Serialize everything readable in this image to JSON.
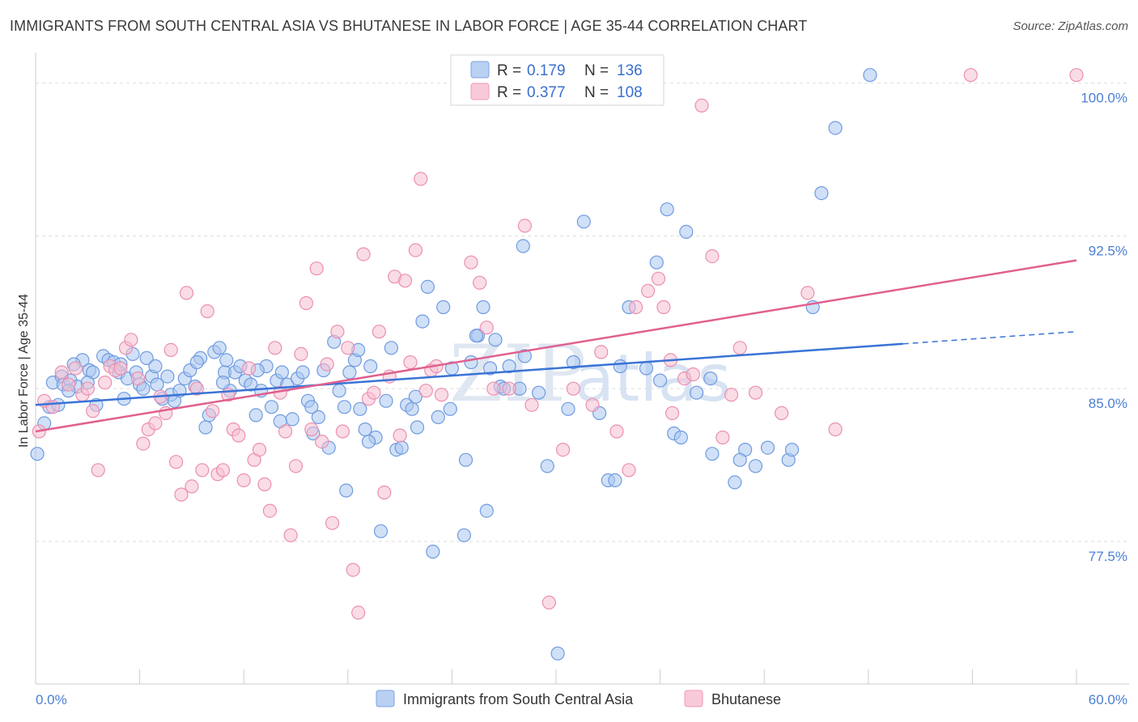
{
  "header": {
    "title": "IMMIGRANTS FROM SOUTH CENTRAL ASIA VS BHUTANESE IN LABOR FORCE | AGE 35-44 CORRELATION CHART",
    "source": "Source: ZipAtlas.com"
  },
  "watermark": {
    "zip": "ZIP",
    "atlas": "atlas"
  },
  "legend": {
    "r_label": "R =",
    "n_label": "N =",
    "rows": [
      {
        "r": "0.179",
        "n": "136",
        "color": "#8fb3ea"
      },
      {
        "r": "0.377",
        "n": "108",
        "color": "#f2a6c0"
      }
    ]
  },
  "colors": {
    "blue_fill": "#a9c6f0",
    "blue_stroke": "#6f9be0",
    "blue_line": "#3a73d6",
    "pink_fill": "#f6bfd2",
    "pink_stroke": "#eb8fb0",
    "pink_line": "#e0608f",
    "grid": "#dddddd",
    "tick_text": "#4a7fd4"
  },
  "chart_data": {
    "type": "scatter",
    "title": "IMMIGRANTS FROM SOUTH CENTRAL ASIA VS BHUTANESE IN LABOR FORCE | AGE 35-44 CORRELATION CHART",
    "xlabel": "",
    "ylabel": "In Labor Force | Age 35-44",
    "xlim": [
      0,
      60
    ],
    "ylim": [
      70.5,
      101.5
    ],
    "x_tick_labels": [
      "0.0%",
      "60.0%"
    ],
    "y_ticks": [
      77.5,
      85.0,
      92.5,
      100.0
    ],
    "y_tick_labels": [
      "77.5%",
      "85.0%",
      "92.5%",
      "100.0%"
    ],
    "grid": true,
    "legend_position": "top-center",
    "series": [
      {
        "name": "Immigrants from South Central Asia",
        "r": 0.179,
        "n": 136,
        "trend": {
          "x0": 0.0,
          "y0": 84.2,
          "x1": 50.0,
          "y1": 87.2,
          "dashed_to_x": 60.0,
          "dashed_to_y": 87.8
        },
        "points": [
          [
            0.1,
            81.8
          ],
          [
            0.5,
            83.3
          ],
          [
            0.8,
            84.1
          ],
          [
            1.0,
            85.3
          ],
          [
            1.5,
            85.6
          ],
          [
            1.6,
            85.2
          ],
          [
            2.0,
            85.4
          ],
          [
            2.4,
            85.1
          ],
          [
            2.7,
            86.4
          ],
          [
            3.1,
            85.9
          ],
          [
            3.3,
            85.8
          ],
          [
            3.5,
            84.2
          ],
          [
            3.9,
            86.6
          ],
          [
            4.2,
            86.4
          ],
          [
            4.5,
            86.3
          ],
          [
            4.8,
            85.8
          ],
          [
            5.1,
            84.5
          ],
          [
            5.3,
            85.5
          ],
          [
            5.6,
            86.7
          ],
          [
            5.8,
            85.8
          ],
          [
            6.0,
            85.2
          ],
          [
            6.4,
            86.5
          ],
          [
            6.7,
            85.6
          ],
          [
            6.9,
            86.1
          ],
          [
            7.3,
            84.5
          ],
          [
            7.6,
            85.6
          ],
          [
            7.8,
            84.7
          ],
          [
            8.0,
            84.4
          ],
          [
            8.3,
            84.9
          ],
          [
            8.6,
            85.5
          ],
          [
            8.9,
            85.9
          ],
          [
            9.2,
            85.1
          ],
          [
            9.5,
            86.5
          ],
          [
            9.8,
            83.1
          ],
          [
            10.0,
            83.7
          ],
          [
            10.3,
            86.8
          ],
          [
            10.6,
            87.0
          ],
          [
            10.9,
            85.8
          ],
          [
            11.2,
            84.9
          ],
          [
            11.5,
            85.8
          ],
          [
            11.8,
            86.1
          ],
          [
            12.1,
            85.4
          ],
          [
            12.4,
            85.2
          ],
          [
            12.7,
            83.7
          ],
          [
            13.0,
            84.9
          ],
          [
            13.3,
            86.1
          ],
          [
            13.6,
            84.1
          ],
          [
            13.9,
            85.4
          ],
          [
            14.2,
            85.8
          ],
          [
            14.5,
            85.2
          ],
          [
            14.8,
            83.5
          ],
          [
            15.1,
            85.5
          ],
          [
            15.4,
            85.8
          ],
          [
            15.7,
            84.4
          ],
          [
            16.0,
            82.8
          ],
          [
            16.3,
            83.6
          ],
          [
            16.6,
            85.9
          ],
          [
            16.9,
            82.1
          ],
          [
            17.2,
            87.3
          ],
          [
            17.5,
            84.9
          ],
          [
            17.8,
            84.1
          ],
          [
            18.1,
            85.8
          ],
          [
            18.4,
            86.4
          ],
          [
            18.7,
            84.0
          ],
          [
            19.0,
            83.0
          ],
          [
            19.3,
            86.1
          ],
          [
            19.6,
            82.6
          ],
          [
            19.9,
            78.0
          ],
          [
            20.2,
            84.4
          ],
          [
            20.5,
            87.0
          ],
          [
            20.8,
            82.0
          ],
          [
            21.1,
            82.1
          ],
          [
            21.4,
            84.2
          ],
          [
            21.7,
            84.0
          ],
          [
            22.0,
            83.1
          ],
          [
            22.3,
            88.3
          ],
          [
            22.6,
            90.0
          ],
          [
            22.9,
            77.0
          ],
          [
            23.2,
            83.6
          ],
          [
            23.5,
            89.0
          ],
          [
            24.0,
            86.0
          ],
          [
            24.7,
            77.8
          ],
          [
            25.1,
            86.3
          ],
          [
            25.5,
            87.6
          ],
          [
            25.8,
            89.0
          ],
          [
            26.2,
            86.0
          ],
          [
            26.5,
            87.4
          ],
          [
            26.8,
            85.1
          ],
          [
            27.3,
            86.1
          ],
          [
            27.9,
            85.0
          ],
          [
            28.2,
            86.6
          ],
          [
            29.5,
            81.2
          ],
          [
            30.1,
            72.0
          ],
          [
            32.5,
            83.8
          ],
          [
            33.0,
            80.5
          ],
          [
            33.4,
            80.5
          ],
          [
            34.2,
            89.0
          ],
          [
            35.2,
            86.0
          ],
          [
            36.0,
            85.4
          ],
          [
            36.8,
            82.8
          ],
          [
            37.2,
            82.6
          ],
          [
            38.1,
            84.8
          ],
          [
            38.9,
            85.5
          ],
          [
            40.3,
            80.4
          ],
          [
            40.9,
            82.0
          ],
          [
            41.5,
            81.2
          ],
          [
            42.2,
            82.1
          ],
          [
            43.4,
            81.5
          ],
          [
            43.6,
            82.0
          ],
          [
            44.8,
            89.0
          ],
          [
            45.3,
            94.6
          ],
          [
            46.1,
            97.8
          ],
          [
            48.1,
            100.4
          ],
          [
            31.0,
            86.3
          ],
          [
            24.8,
            81.5
          ],
          [
            17.9,
            80.0
          ],
          [
            28.1,
            92.0
          ],
          [
            31.6,
            93.2
          ],
          [
            33.7,
            86.1
          ],
          [
            36.4,
            93.8
          ],
          [
            37.5,
            92.7
          ],
          [
            39.0,
            81.8
          ],
          [
            40.6,
            81.5
          ],
          [
            26.0,
            79.0
          ],
          [
            15.9,
            84.1
          ],
          [
            10.8,
            85.3
          ],
          [
            9.3,
            86.3
          ],
          [
            6.2,
            85.0
          ],
          [
            3.0,
            85.3
          ],
          [
            1.9,
            84.9
          ],
          [
            1.3,
            84.2
          ],
          [
            12.8,
            85.9
          ],
          [
            14.1,
            83.4
          ],
          [
            21.9,
            84.6
          ],
          [
            25.4,
            87.6
          ],
          [
            19.2,
            82.4
          ],
          [
            23.9,
            84.0
          ],
          [
            27.0,
            85.0
          ],
          [
            29.0,
            84.8
          ],
          [
            30.7,
            84.0
          ],
          [
            18.6,
            86.9
          ],
          [
            11.0,
            86.4
          ],
          [
            7.0,
            85.2
          ],
          [
            4.9,
            86.2
          ],
          [
            2.2,
            86.2
          ],
          [
            35.8,
            91.2
          ]
        ]
      },
      {
        "name": "Bhutanese",
        "r": 0.377,
        "n": 108,
        "trend": {
          "x0": 0.0,
          "y0": 82.9,
          "x1": 60.0,
          "y1": 91.3
        },
        "points": [
          [
            0.2,
            82.9
          ],
          [
            0.5,
            84.4
          ],
          [
            1.0,
            84.1
          ],
          [
            1.5,
            85.8
          ],
          [
            1.9,
            85.2
          ],
          [
            2.3,
            86.0
          ],
          [
            2.7,
            84.7
          ],
          [
            3.0,
            85.0
          ],
          [
            3.3,
            83.9
          ],
          [
            3.6,
            81.0
          ],
          [
            4.0,
            85.3
          ],
          [
            4.3,
            86.1
          ],
          [
            4.6,
            85.9
          ],
          [
            4.9,
            86.0
          ],
          [
            5.2,
            87.0
          ],
          [
            5.5,
            87.4
          ],
          [
            5.9,
            85.5
          ],
          [
            6.2,
            82.3
          ],
          [
            6.5,
            83.0
          ],
          [
            6.9,
            83.3
          ],
          [
            7.2,
            84.6
          ],
          [
            7.5,
            83.8
          ],
          [
            7.8,
            86.9
          ],
          [
            8.1,
            81.4
          ],
          [
            8.4,
            79.8
          ],
          [
            8.7,
            89.7
          ],
          [
            9.0,
            80.2
          ],
          [
            9.3,
            85.0
          ],
          [
            9.6,
            81.0
          ],
          [
            9.9,
            88.8
          ],
          [
            10.2,
            83.9
          ],
          [
            10.5,
            80.8
          ],
          [
            10.8,
            81.0
          ],
          [
            11.1,
            84.7
          ],
          [
            11.4,
            83.0
          ],
          [
            11.7,
            82.7
          ],
          [
            12.0,
            80.5
          ],
          [
            12.3,
            86.0
          ],
          [
            12.6,
            81.5
          ],
          [
            12.9,
            82.0
          ],
          [
            13.2,
            80.3
          ],
          [
            13.5,
            79.0
          ],
          [
            13.8,
            87.0
          ],
          [
            14.1,
            84.8
          ],
          [
            14.4,
            82.9
          ],
          [
            14.7,
            77.8
          ],
          [
            15.0,
            81.2
          ],
          [
            15.3,
            86.7
          ],
          [
            15.6,
            89.2
          ],
          [
            15.9,
            83.0
          ],
          [
            16.2,
            90.9
          ],
          [
            16.5,
            82.4
          ],
          [
            16.8,
            86.2
          ],
          [
            17.1,
            78.4
          ],
          [
            17.4,
            87.8
          ],
          [
            17.7,
            82.9
          ],
          [
            18.0,
            87.0
          ],
          [
            18.3,
            76.1
          ],
          [
            18.6,
            74.0
          ],
          [
            18.9,
            91.6
          ],
          [
            19.2,
            84.5
          ],
          [
            19.5,
            84.8
          ],
          [
            19.8,
            87.8
          ],
          [
            20.1,
            79.9
          ],
          [
            20.4,
            85.6
          ],
          [
            20.7,
            90.5
          ],
          [
            21.0,
            82.7
          ],
          [
            21.3,
            90.3
          ],
          [
            21.6,
            86.3
          ],
          [
            21.9,
            91.8
          ],
          [
            22.2,
            95.3
          ],
          [
            22.5,
            84.9
          ],
          [
            22.8,
            85.9
          ],
          [
            23.1,
            86.1
          ],
          [
            23.4,
            84.7
          ],
          [
            25.1,
            91.2
          ],
          [
            25.6,
            90.2
          ],
          [
            26.0,
            88.0
          ],
          [
            26.4,
            85.0
          ],
          [
            27.3,
            85.0
          ],
          [
            28.2,
            93.0
          ],
          [
            29.6,
            74.5
          ],
          [
            30.4,
            82.0
          ],
          [
            31.0,
            85.0
          ],
          [
            32.1,
            84.2
          ],
          [
            32.6,
            86.8
          ],
          [
            33.5,
            82.9
          ],
          [
            34.2,
            81.0
          ],
          [
            34.6,
            89.0
          ],
          [
            35.3,
            89.8
          ],
          [
            35.9,
            90.4
          ],
          [
            36.2,
            89.0
          ],
          [
            36.6,
            86.4
          ],
          [
            37.4,
            85.5
          ],
          [
            37.9,
            85.7
          ],
          [
            38.4,
            98.9
          ],
          [
            39.0,
            91.5
          ],
          [
            39.6,
            82.6
          ],
          [
            40.1,
            84.7
          ],
          [
            40.6,
            87.0
          ],
          [
            41.5,
            84.8
          ],
          [
            43.0,
            83.8
          ],
          [
            44.5,
            89.7
          ],
          [
            46.1,
            83.0
          ],
          [
            53.9,
            100.4
          ],
          [
            60.0,
            100.4
          ],
          [
            28.6,
            84.2
          ],
          [
            36.7,
            83.8
          ]
        ]
      }
    ]
  },
  "bottom_legend": {
    "items": [
      {
        "label": "Immigrants from South Central Asia"
      },
      {
        "label": "Bhutanese"
      }
    ]
  }
}
